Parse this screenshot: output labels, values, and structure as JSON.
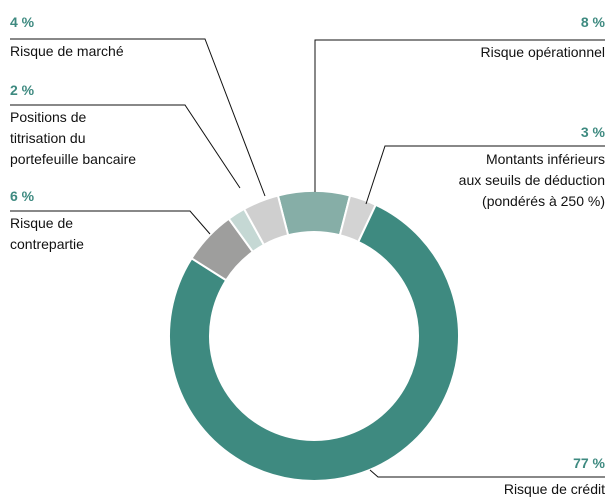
{
  "chart_data": {
    "type": "pie",
    "donut": true,
    "categories": [
      "Risque opérationnel",
      "Montants inférieurs\naux seuils de déduction\n(pondérés à 250 %)",
      "Risque de crédit",
      "Risque de\ncontrepartie",
      "Positions de\ntitrisation du\nportefeuille bancaire",
      "Risque de marché"
    ],
    "values": [
      8,
      3,
      77,
      6,
      2,
      4
    ],
    "value_labels": [
      "8 %",
      "3 %",
      "77 %",
      "6 %",
      "2 %",
      "4 %"
    ],
    "colors": [
      "#86aea7",
      "#d3d3d3",
      "#3e8a80",
      "#9e9e9d",
      "#c5d8d4",
      "#cfcfcf"
    ]
  }
}
